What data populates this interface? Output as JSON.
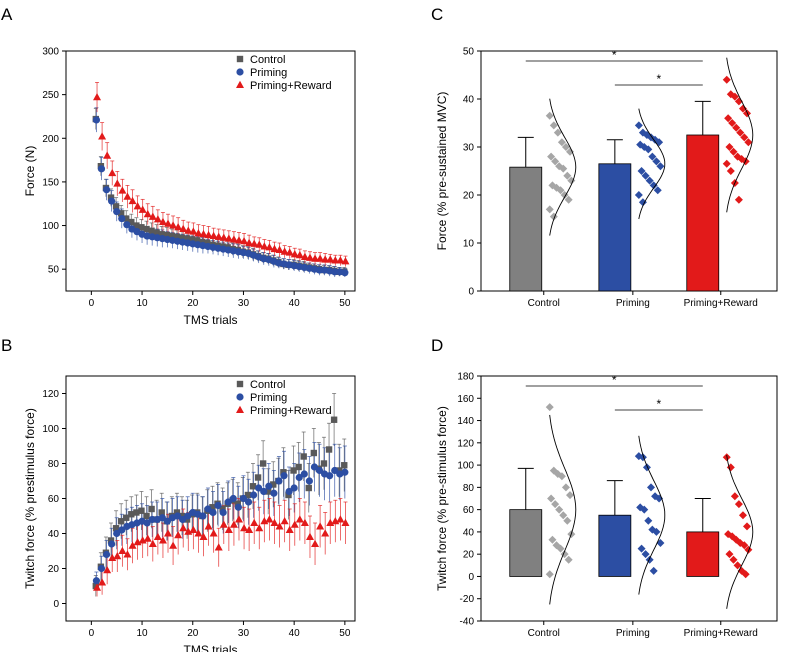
{
  "colors": {
    "control": "#595959",
    "priming": "#2c4ea3",
    "reward": "#e21a1a",
    "control_bar": "#808080",
    "control_dot": "#a6a6a6"
  },
  "chart_data": [
    {
      "panel": "A",
      "type": "scatter",
      "xlabel": "TMS trials",
      "ylabel": "Force (N)",
      "xlim": [
        -5,
        52
      ],
      "ylim": [
        25,
        300
      ],
      "xticks": [
        0,
        10,
        20,
        30,
        40,
        50
      ],
      "yticks": [
        50,
        100,
        150,
        200,
        250,
        300
      ],
      "legend_position": "top-right",
      "series": [
        {
          "name": "Control",
          "marker": "square",
          "values": [
            222,
            168,
            143,
            132,
            122,
            114,
            108,
            104,
            100,
            98,
            96,
            94,
            92,
            90,
            89,
            88,
            87,
            86,
            85,
            84,
            83,
            81,
            80,
            78,
            77,
            76,
            75,
            73,
            72,
            70,
            69,
            67,
            65,
            63,
            62,
            60,
            58,
            56,
            55,
            55,
            54,
            53,
            52,
            51,
            50,
            49,
            49,
            48,
            47,
            47
          ],
          "errors": [
            12,
            11,
            10,
            10,
            10,
            9,
            9,
            9,
            9,
            9,
            9,
            9,
            9,
            9,
            9,
            8,
            8,
            8,
            8,
            8,
            8,
            8,
            8,
            8,
            7,
            7,
            7,
            7,
            7,
            7,
            7,
            7,
            6,
            6,
            6,
            6,
            6,
            6,
            6,
            6,
            6,
            6,
            5,
            5,
            5,
            5,
            5,
            5,
            5,
            5
          ]
        },
        {
          "name": "Priming",
          "marker": "circle",
          "values": [
            221,
            165,
            141,
            128,
            116,
            108,
            101,
            96,
            93,
            90,
            88,
            87,
            86,
            85,
            84,
            83,
            82,
            81,
            80,
            79,
            78,
            77,
            76,
            75,
            74,
            73,
            72,
            71,
            70,
            69,
            68,
            66,
            64,
            62,
            61,
            59,
            57,
            56,
            55,
            54,
            53,
            52,
            51,
            50,
            49,
            49,
            48,
            47,
            47,
            46
          ],
          "errors": [
            14,
            13,
            12,
            12,
            11,
            11,
            10,
            10,
            10,
            10,
            10,
            10,
            10,
            10,
            9,
            9,
            9,
            9,
            9,
            9,
            9,
            9,
            8,
            8,
            8,
            8,
            8,
            8,
            8,
            7,
            7,
            7,
            7,
            7,
            7,
            7,
            6,
            6,
            6,
            6,
            6,
            6,
            6,
            6,
            6,
            6,
            6,
            6,
            5,
            5
          ]
        },
        {
          "name": "Priming+Reward",
          "marker": "triangle",
          "values": [
            247,
            202,
            180,
            160,
            148,
            140,
            133,
            128,
            122,
            118,
            113,
            110,
            107,
            104,
            102,
            100,
            98,
            96,
            94,
            93,
            91,
            90,
            89,
            88,
            87,
            86,
            85,
            84,
            83,
            82,
            80,
            79,
            78,
            76,
            75,
            73,
            72,
            70,
            69,
            67,
            66,
            64,
            63,
            62,
            62,
            61,
            61,
            60,
            60,
            59
          ],
          "errors": [
            17,
            16,
            15,
            14,
            14,
            13,
            13,
            13,
            12,
            12,
            12,
            12,
            11,
            11,
            11,
            11,
            11,
            10,
            10,
            10,
            10,
            10,
            10,
            9,
            9,
            9,
            9,
            9,
            9,
            9,
            9,
            8,
            8,
            8,
            8,
            8,
            8,
            7,
            7,
            7,
            7,
            7,
            7,
            7,
            7,
            7,
            6,
            6,
            6,
            6
          ]
        }
      ]
    },
    {
      "panel": "B",
      "type": "scatter",
      "xlabel": "TMS trials",
      "ylabel": "Twitch force (% prestimulus force)",
      "xlim": [
        -5,
        52
      ],
      "ylim": [
        -10,
        130
      ],
      "xticks": [
        0,
        10,
        20,
        30,
        40,
        50
      ],
      "yticks": [
        0,
        20,
        40,
        60,
        80,
        100,
        120
      ],
      "legend_position": "top-right",
      "series": [
        {
          "name": "Control",
          "marker": "square",
          "values": [
            10,
            21,
            29,
            36,
            43,
            47,
            49,
            51,
            52,
            53,
            50,
            54,
            48,
            52,
            47,
            50,
            52,
            50,
            48,
            51,
            52,
            50,
            53,
            55,
            57,
            54,
            57,
            59,
            57,
            60,
            62,
            67,
            72,
            80,
            64,
            68,
            70,
            75,
            62,
            76,
            78,
            84,
            66,
            86,
            77,
            80,
            88,
            105,
            76,
            79
          ],
          "errors": [
            6,
            8,
            9,
            10,
            10,
            10,
            10,
            10,
            10,
            11,
            11,
            11,
            11,
            11,
            11,
            11,
            11,
            11,
            11,
            11,
            11,
            11,
            12,
            12,
            12,
            12,
            12,
            12,
            12,
            12,
            13,
            13,
            13,
            13,
            13,
            13,
            13,
            14,
            14,
            14,
            14,
            14,
            14,
            14,
            15,
            15,
            15,
            15,
            15,
            15
          ]
        },
        {
          "name": "Priming",
          "marker": "circle",
          "values": [
            13,
            20,
            28,
            34,
            40,
            42,
            44,
            45,
            46,
            47,
            46,
            48,
            48,
            49,
            47,
            49,
            50,
            48,
            50,
            52,
            51,
            50,
            54,
            52,
            56,
            52,
            58,
            60,
            55,
            60,
            58,
            62,
            66,
            64,
            67,
            63,
            70,
            73,
            64,
            66,
            72,
            74,
            70,
            78,
            76,
            74,
            73,
            76,
            74,
            75
          ],
          "errors": [
            5,
            7,
            8,
            9,
            9,
            9,
            10,
            10,
            10,
            10,
            10,
            10,
            10,
            11,
            11,
            11,
            11,
            11,
            11,
            11,
            11,
            11,
            12,
            12,
            12,
            12,
            12,
            12,
            12,
            13,
            13,
            13,
            13,
            13,
            13,
            13,
            14,
            14,
            14,
            14,
            14,
            14,
            14,
            14,
            15,
            15,
            15,
            15,
            15,
            15
          ]
        },
        {
          "name": "Priming+Reward",
          "marker": "triangle",
          "values": [
            9,
            12,
            19,
            26,
            27,
            30,
            28,
            33,
            35,
            36,
            37,
            34,
            38,
            36,
            40,
            33,
            39,
            43,
            41,
            42,
            40,
            38,
            44,
            40,
            32,
            45,
            42,
            45,
            48,
            43,
            42,
            46,
            43,
            47,
            48,
            46,
            44,
            47,
            42,
            45,
            48,
            46,
            38,
            34,
            44,
            40,
            46,
            47,
            48,
            46
          ],
          "errors": [
            5,
            7,
            8,
            8,
            9,
            9,
            9,
            10,
            10,
            10,
            10,
            10,
            10,
            10,
            11,
            11,
            11,
            11,
            11,
            11,
            11,
            11,
            11,
            11,
            11,
            11,
            12,
            12,
            12,
            12,
            12,
            12,
            12,
            12,
            12,
            12,
            12,
            12,
            12,
            12,
            12,
            12,
            12,
            12,
            12,
            12,
            12,
            12,
            12,
            12
          ]
        }
      ]
    },
    {
      "panel": "C",
      "type": "bar",
      "categories": [
        "Control",
        "Priming",
        "Priming+Reward"
      ],
      "ylabel": "Force (% pre-sustained MVC)",
      "ylim": [
        0,
        50
      ],
      "yticks": [
        0,
        10,
        20,
        30,
        40,
        50
      ],
      "means": [
        25.8,
        26.5,
        32.5
      ],
      "sd": [
        6.2,
        5.0,
        7.0
      ],
      "points": [
        [
          36.5,
          34.5,
          33,
          31,
          30,
          29,
          28,
          27,
          26,
          25.5,
          24,
          23,
          22,
          21.5,
          21,
          20,
          19,
          17,
          15.5
        ],
        [
          34.5,
          33,
          32.5,
          32,
          31.5,
          31,
          30.5,
          30,
          29.5,
          28,
          27,
          26,
          25,
          24,
          23,
          22,
          21,
          20,
          18.5
        ],
        [
          44,
          41,
          40.5,
          39.5,
          38,
          37,
          36,
          35,
          34,
          33,
          32,
          31,
          30,
          29,
          28,
          27.5,
          27,
          26.5,
          25,
          22.5,
          19
        ]
      ],
      "significance": [
        {
          "from": "Control",
          "to": "Priming+Reward",
          "label": "*"
        },
        {
          "from": "Priming",
          "to": "Priming+Reward",
          "label": "*"
        }
      ]
    },
    {
      "panel": "D",
      "type": "bar",
      "categories": [
        "Control",
        "Priming",
        "Priming+Reward"
      ],
      "ylabel": "Twitch force (% pre-stimulus force)",
      "ylim": [
        -40,
        180
      ],
      "yticks": [
        -40,
        -20,
        0,
        20,
        40,
        60,
        80,
        100,
        120,
        140,
        160,
        180
      ],
      "means": [
        60,
        55,
        40
      ],
      "sd": [
        37,
        31,
        30
      ],
      "points": [
        [
          152,
          95,
          92,
          90,
          80,
          73,
          70,
          65,
          60,
          55,
          50,
          38,
          33,
          28,
          25,
          20,
          15,
          2
        ],
        [
          108,
          107,
          98,
          80,
          72,
          70,
          62,
          60,
          50,
          42,
          40,
          30,
          25,
          20,
          15,
          5
        ],
        [
          107,
          98,
          72,
          65,
          55,
          45,
          38,
          36,
          33,
          30,
          28,
          24,
          20,
          15,
          10,
          5,
          2
        ]
      ],
      "significance": [
        {
          "from": "Control",
          "to": "Priming+Reward",
          "label": "*"
        },
        {
          "from": "Priming",
          "to": "Priming+Reward",
          "label": "*"
        }
      ]
    }
  ]
}
